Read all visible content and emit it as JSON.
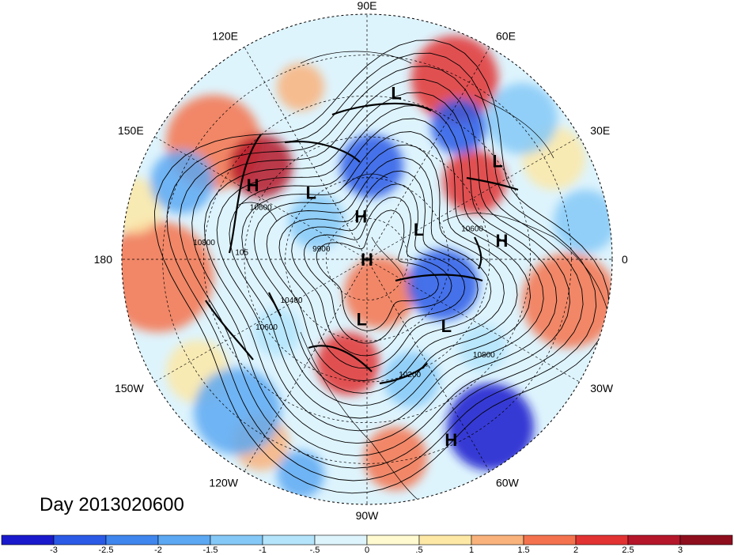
{
  "title": "Day 2013020600",
  "longitude_labels": [
    {
      "label": "90E",
      "lon": 90
    },
    {
      "label": "60E",
      "lon": 60
    },
    {
      "label": "30E",
      "lon": 30
    },
    {
      "label": "0",
      "lon": 0
    },
    {
      "label": "30W",
      "lon": -30
    },
    {
      "label": "60W",
      "lon": -60
    },
    {
      "label": "90W",
      "lon": -90
    },
    {
      "label": "120W",
      "lon": -120
    },
    {
      "label": "150W",
      "lon": -150
    },
    {
      "label": "180",
      "lon": 180
    },
    {
      "label": "150E",
      "lon": 150
    },
    {
      "label": "120E",
      "lon": 120
    }
  ],
  "pressure_centers": [
    {
      "label": "L",
      "lon": 80,
      "lat": 28
    },
    {
      "label": "L",
      "lon": 37,
      "lat": 30
    },
    {
      "label": "H",
      "lon": 147,
      "lat": 40
    },
    {
      "label": "L",
      "lon": 130,
      "lat": 58
    },
    {
      "label": "H",
      "lon": 98,
      "lat": 74
    },
    {
      "label": "L",
      "lon": 30,
      "lat": 68
    },
    {
      "label": "H",
      "lon": 8,
      "lat": 40
    },
    {
      "label": "H",
      "lon": 0,
      "lat": 90
    },
    {
      "label": "L",
      "lon": -40,
      "lat": 52
    },
    {
      "label": "L",
      "lon": -95,
      "lat": 68
    },
    {
      "label": "H",
      "lon": -65,
      "lat": 17
    }
  ],
  "contour_labels": [
    {
      "text": "10800",
      "lon": 175,
      "lat": 30
    },
    {
      "text": "10800",
      "lon": -40,
      "lat": 34
    },
    {
      "text": "10600",
      "lon": 155,
      "lat": 47
    },
    {
      "text": "10600",
      "lon": 15,
      "lat": 50
    },
    {
      "text": "10600",
      "lon": -145,
      "lat": 45
    },
    {
      "text": "10400",
      "lon": -150,
      "lat": 58
    },
    {
      "text": "10200",
      "lon": -70,
      "lat": 44
    },
    {
      "text": "105",
      "lon": 178,
      "lat": 44
    },
    {
      "text": "9900",
      "lon": 170,
      "lat": 73
    }
  ],
  "colorbar": {
    "tick_labels": [
      "-3",
      "-2.5",
      "-2",
      "-1.5",
      "-1",
      "-.5",
      "0",
      ".5",
      "1",
      "1.5",
      "2",
      "2.5",
      "3"
    ],
    "colors": [
      "#1a1acc",
      "#2a5ae6",
      "#3f86ee",
      "#5ca8f2",
      "#84c8f7",
      "#b3e4fb",
      "#def4fd",
      "#fffad0",
      "#fde8a6",
      "#f9b27b",
      "#f4734e",
      "#e23232",
      "#b5162a",
      "#8e0e1e"
    ]
  }
}
